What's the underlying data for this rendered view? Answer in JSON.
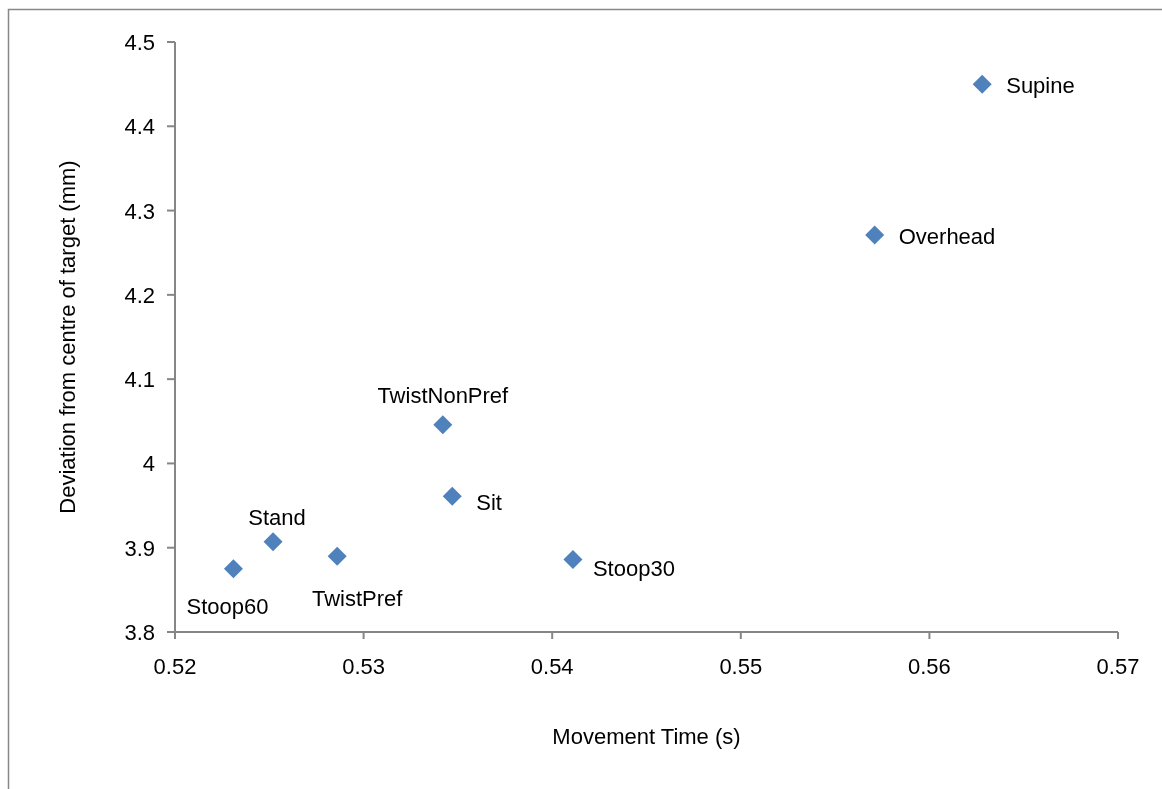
{
  "chart_data": {
    "type": "scatter",
    "xlabel": "Movement Time (s)",
    "ylabel": "Deviation from centre of target (mm)",
    "xlim": [
      0.52,
      0.57
    ],
    "xticks": [
      0.52,
      0.53,
      0.54,
      0.55,
      0.56,
      0.57
    ],
    "ylim": [
      3.8,
      4.5
    ],
    "yticks": [
      3.8,
      3.9,
      {
        "value": 4.0,
        "label": "4"
      },
      4.1,
      4.2,
      4.3,
      4.4,
      4.5
    ],
    "grid": false,
    "marker": "diamond",
    "series": [
      {
        "color": "#4f81bd",
        "x": [
          0.5628,
          0.5571,
          0.5342,
          0.5347,
          0.5252,
          0.5286,
          0.5231,
          0.5411
        ],
        "values": [
          4.45,
          4.271,
          4.046,
          3.961,
          3.907,
          3.89,
          3.875,
          3.886
        ]
      }
    ],
    "annotations": [
      {
        "text": "Supine",
        "x": 0.5628,
        "y": 4.45
      },
      {
        "text": "Overhead",
        "x": 0.5571,
        "y": 4.271
      },
      {
        "text": "TwistNonPref",
        "x": 0.5342,
        "y": 4.046
      },
      {
        "text": "Sit",
        "x": 0.5347,
        "y": 3.961
      },
      {
        "text": "Stand",
        "x": 0.5252,
        "y": 3.907
      },
      {
        "text": "TwistPref",
        "x": 0.5286,
        "y": 3.89
      },
      {
        "text": "Stoop60",
        "x": 0.5231,
        "y": 3.875
      },
      {
        "text": "Stoop30",
        "x": 0.5411,
        "y": 3.886
      }
    ]
  }
}
